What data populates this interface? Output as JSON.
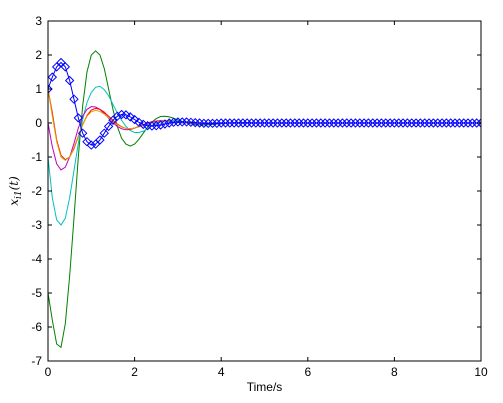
{
  "chart_data": {
    "type": "line",
    "xlabel": "Time/s",
    "ylabel": "x_{i1}(t)",
    "ylabel_main": "x",
    "ylabel_sub": "i1",
    "ylabel_tail": "(t)",
    "xlim": [
      0,
      10
    ],
    "ylim": [
      -7,
      3
    ],
    "xticks": [
      0,
      2,
      4,
      6,
      8,
      10
    ],
    "yticks": [
      -7,
      -6,
      -5,
      -4,
      -3,
      -2,
      -1,
      0,
      1,
      2,
      3
    ],
    "grid": false,
    "legend": false,
    "series": [
      {
        "color": "#0000ff",
        "marker": "diamond",
        "x": [
          0.0,
          0.1,
          0.2,
          0.3,
          0.4,
          0.5,
          0.6,
          0.7,
          0.8,
          0.9,
          1.0,
          1.1,
          1.2,
          1.3,
          1.4,
          1.5,
          1.6,
          1.7,
          1.8,
          1.9,
          2.0,
          2.1,
          2.2,
          2.3,
          2.4,
          2.5,
          2.6,
          2.7,
          2.8,
          2.9,
          3.0,
          3.1,
          3.2,
          3.3,
          3.4,
          3.5,
          3.6,
          3.7,
          3.8,
          3.9,
          4.0,
          4.1,
          4.2,
          4.3,
          4.4,
          4.5,
          4.6,
          4.7,
          4.8,
          4.9,
          5.0,
          5.1,
          5.2,
          5.3,
          5.4,
          5.5,
          5.6,
          5.7,
          5.8,
          5.9,
          6.0,
          6.1,
          6.2,
          6.3,
          6.4,
          6.5,
          6.6,
          6.7,
          6.8,
          6.9,
          7.0,
          7.1,
          7.2,
          7.3,
          7.4,
          7.5,
          7.6,
          7.7,
          7.8,
          7.9,
          8.0,
          8.1,
          8.2,
          8.3,
          8.4,
          8.5,
          8.6,
          8.7,
          8.8,
          8.9,
          9.0,
          9.1,
          9.2,
          9.3,
          9.4,
          9.5,
          9.6,
          9.7,
          9.8,
          9.9,
          10.0
        ],
        "y": [
          1.0,
          1.35,
          1.65,
          1.78,
          1.65,
          1.25,
          0.7,
          0.15,
          -0.3,
          -0.55,
          -0.65,
          -0.62,
          -0.5,
          -0.3,
          -0.1,
          0.08,
          0.2,
          0.25,
          0.24,
          0.18,
          0.1,
          0.02,
          -0.04,
          -0.08,
          -0.09,
          -0.08,
          -0.06,
          -0.03,
          0.0,
          0.02,
          0.03,
          0.03,
          0.03,
          0.02,
          0.01,
          0.0,
          -0.01,
          -0.01,
          -0.01,
          -0.01,
          0.0,
          0.0,
          0.0,
          0.0,
          0.0,
          0.0,
          0.0,
          0.0,
          0.0,
          0.0,
          0.0,
          0.0,
          0.0,
          0.0,
          0.0,
          0.0,
          0.0,
          0.0,
          0.0,
          0.0,
          0.0,
          0.0,
          0.0,
          0.0,
          0.0,
          0.0,
          0.0,
          0.0,
          0.0,
          0.0,
          0.0,
          0.0,
          0.0,
          0.0,
          0.0,
          0.0,
          0.0,
          0.0,
          0.0,
          0.0,
          0.0,
          0.0,
          0.0,
          0.0,
          0.0,
          0.0,
          0.0,
          0.0,
          0.0,
          0.0,
          0.0,
          0.0,
          0.0,
          0.0,
          0.0,
          0.0,
          0.0,
          0.0,
          0.0,
          0.0,
          0.0
        ]
      },
      {
        "color": "#008000",
        "marker": "none",
        "x": [
          0.0,
          0.1,
          0.2,
          0.3,
          0.4,
          0.5,
          0.6,
          0.7,
          0.8,
          0.9,
          1.0,
          1.1,
          1.2,
          1.3,
          1.4,
          1.5,
          1.6,
          1.7,
          1.8,
          1.9,
          2.0,
          2.1,
          2.2,
          2.3,
          2.4,
          2.5,
          2.6,
          2.7,
          2.8,
          2.9,
          3.0,
          3.2,
          3.4,
          3.6,
          3.8,
          4.0,
          4.2,
          4.4,
          4.6,
          4.8,
          5.0,
          6.0,
          7.0,
          8.0,
          9.0,
          10.0
        ],
        "y": [
          -5.0,
          -5.8,
          -6.5,
          -6.6,
          -5.9,
          -4.5,
          -2.8,
          -1.0,
          0.5,
          1.5,
          2.0,
          2.12,
          2.0,
          1.6,
          1.0,
          0.4,
          -0.1,
          -0.45,
          -0.62,
          -0.68,
          -0.62,
          -0.48,
          -0.3,
          -0.12,
          0.03,
          0.13,
          0.19,
          0.2,
          0.18,
          0.14,
          0.09,
          0.0,
          -0.05,
          -0.06,
          -0.04,
          -0.02,
          0.0,
          0.01,
          0.01,
          0.0,
          0.0,
          0.0,
          0.0,
          0.0,
          0.0,
          0.0
        ]
      },
      {
        "color": "#00bfbf",
        "marker": "none",
        "x": [
          0.0,
          0.1,
          0.2,
          0.3,
          0.4,
          0.5,
          0.6,
          0.7,
          0.8,
          0.9,
          1.0,
          1.1,
          1.2,
          1.3,
          1.4,
          1.5,
          1.6,
          1.7,
          1.8,
          1.9,
          2.0,
          2.1,
          2.2,
          2.3,
          2.4,
          2.5,
          2.6,
          2.7,
          2.8,
          2.9,
          3.0,
          3.2,
          3.4,
          3.6,
          3.8,
          4.0,
          4.2,
          4.4,
          4.6,
          4.8,
          5.0,
          6.0,
          7.0,
          8.0,
          9.0,
          10.0
        ],
        "y": [
          -1.0,
          -2.2,
          -2.85,
          -3.0,
          -2.8,
          -2.2,
          -1.4,
          -0.6,
          0.1,
          0.6,
          0.9,
          1.05,
          1.08,
          0.98,
          0.8,
          0.55,
          0.3,
          0.08,
          -0.1,
          -0.22,
          -0.28,
          -0.28,
          -0.24,
          -0.17,
          -0.09,
          -0.02,
          0.03,
          0.06,
          0.07,
          0.07,
          0.06,
          0.03,
          0.0,
          -0.02,
          -0.02,
          -0.01,
          0.0,
          0.0,
          0.0,
          0.0,
          0.0,
          0.0,
          0.0,
          0.0,
          0.0,
          0.0
        ]
      },
      {
        "color": "#bf00bf",
        "marker": "none",
        "x": [
          0.0,
          0.1,
          0.2,
          0.3,
          0.4,
          0.5,
          0.6,
          0.7,
          0.8,
          0.9,
          1.0,
          1.1,
          1.2,
          1.3,
          1.4,
          1.5,
          1.6,
          1.7,
          1.8,
          1.9,
          2.0,
          2.1,
          2.2,
          2.3,
          2.4,
          2.5,
          2.6,
          2.7,
          2.8,
          2.9,
          3.0,
          3.2,
          3.4,
          3.6,
          3.8,
          4.0,
          4.2,
          4.4,
          4.6,
          4.8,
          5.0,
          6.0,
          7.0,
          8.0,
          9.0,
          10.0
        ],
        "y": [
          0.0,
          -0.7,
          -1.2,
          -1.38,
          -1.3,
          -1.0,
          -0.6,
          -0.15,
          0.2,
          0.4,
          0.48,
          0.47,
          0.4,
          0.28,
          0.14,
          0.01,
          -0.1,
          -0.17,
          -0.2,
          -0.19,
          -0.15,
          -0.1,
          -0.05,
          0.0,
          0.04,
          0.06,
          0.07,
          0.06,
          0.05,
          0.03,
          0.02,
          0.0,
          -0.02,
          -0.02,
          -0.01,
          0.0,
          0.0,
          0.0,
          0.0,
          0.0,
          0.0,
          0.0,
          0.0,
          0.0,
          0.0,
          0.0
        ]
      },
      {
        "color": "#ff0000",
        "marker": "none",
        "x": [
          0.0,
          0.1,
          0.2,
          0.3,
          0.4,
          0.5,
          0.6,
          0.7,
          0.8,
          0.9,
          1.0,
          1.1,
          1.2,
          1.3,
          1.4,
          1.5,
          1.6,
          1.7,
          1.8,
          1.9,
          2.0,
          2.1,
          2.2,
          2.3,
          2.4,
          2.5,
          2.6,
          2.7,
          2.8,
          2.9,
          3.0,
          3.2,
          3.4,
          3.6,
          3.8,
          4.0,
          4.2,
          4.4,
          4.6,
          4.8,
          5.0,
          6.0,
          7.0,
          8.0,
          9.0,
          10.0
        ],
        "y": [
          1.0,
          0.3,
          -0.5,
          -0.95,
          -1.08,
          -1.0,
          -0.75,
          -0.4,
          -0.05,
          0.22,
          0.38,
          0.43,
          0.4,
          0.32,
          0.2,
          0.08,
          -0.03,
          -0.11,
          -0.16,
          -0.17,
          -0.15,
          -0.11,
          -0.07,
          -0.03,
          0.01,
          0.03,
          0.05,
          0.05,
          0.04,
          0.03,
          0.02,
          0.0,
          -0.01,
          -0.01,
          -0.01,
          0.0,
          0.0,
          0.0,
          0.0,
          0.0,
          0.0,
          0.0,
          0.0,
          0.0,
          0.0,
          0.0
        ]
      },
      {
        "color": "#e0a000",
        "marker": "none",
        "x": [
          0.0,
          0.1,
          0.2,
          0.3,
          0.4,
          0.5,
          0.6,
          0.7,
          0.8,
          0.9,
          1.0,
          1.1,
          1.2,
          1.3,
          1.4,
          1.5,
          1.6,
          1.7,
          1.8,
          1.9,
          2.0,
          2.1,
          2.2,
          2.3,
          2.4,
          2.5,
          2.6,
          2.7,
          2.8,
          2.9,
          3.0,
          3.2,
          3.4,
          3.6,
          3.8,
          4.0,
          4.2,
          4.4,
          4.6,
          4.8,
          5.0,
          6.0,
          7.0,
          8.0,
          9.0,
          10.0
        ],
        "y": [
          1.0,
          0.2,
          -0.55,
          -1.0,
          -1.1,
          -1.0,
          -0.72,
          -0.38,
          -0.05,
          0.2,
          0.33,
          0.37,
          0.34,
          0.26,
          0.15,
          0.04,
          -0.05,
          -0.12,
          -0.16,
          -0.17,
          -0.15,
          -0.11,
          -0.07,
          -0.03,
          0.0,
          0.03,
          0.04,
          0.04,
          0.04,
          0.03,
          0.02,
          0.0,
          -0.01,
          -0.01,
          -0.01,
          0.0,
          0.0,
          0.0,
          0.0,
          0.0,
          0.0,
          0.0,
          0.0,
          0.0,
          0.0,
          0.0
        ]
      }
    ]
  }
}
